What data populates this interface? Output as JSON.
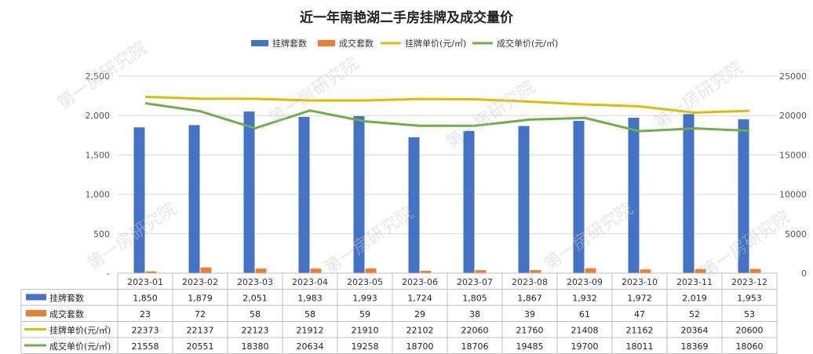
{
  "chart_data": {
    "type": "bar",
    "title": "近一年南艳湖二手房挂牌及成交量价",
    "categories": [
      "2023-01",
      "2023-02",
      "2023-03",
      "2023-04",
      "2023-05",
      "2023-06",
      "2023-07",
      "2023-08",
      "2023-09",
      "2023-10",
      "2023-11",
      "2023-12"
    ],
    "series": [
      {
        "name": "挂牌套数",
        "type": "bar",
        "axis": "left",
        "color": "#4472C4",
        "values": [
          1850,
          1879,
          2051,
          1983,
          1993,
          1724,
          1805,
          1867,
          1932,
          1972,
          2019,
          1953
        ],
        "labels": [
          "1,850",
          "1,879",
          "2,051",
          "1,983",
          "1,993",
          "1,724",
          "1,805",
          "1,867",
          "1,932",
          "1,972",
          "2,019",
          "1,953"
        ]
      },
      {
        "name": "成交套数",
        "type": "bar",
        "axis": "left",
        "color": "#ED7D31",
        "values": [
          23,
          72,
          58,
          58,
          59,
          29,
          38,
          39,
          61,
          47,
          52,
          53
        ],
        "labels": [
          "23",
          "72",
          "58",
          "58",
          "59",
          "29",
          "38",
          "39",
          "61",
          "47",
          "52",
          "53"
        ]
      },
      {
        "name": "挂牌单价(元/㎡)",
        "type": "line",
        "axis": "right",
        "color": "#E6B800",
        "values": [
          22373,
          22137,
          22123,
          21912,
          21910,
          22102,
          22060,
          21760,
          21408,
          21162,
          20364,
          20600
        ],
        "labels": [
          "22373",
          "22137",
          "22123",
          "21912",
          "21910",
          "22102",
          "22060",
          "21760",
          "21408",
          "21162",
          "20364",
          "20600"
        ]
      },
      {
        "name": "成交单价(元/㎡)",
        "type": "line",
        "axis": "right",
        "color": "#70AD47",
        "values": [
          21558,
          20551,
          18380,
          20634,
          19258,
          18700,
          18706,
          19485,
          19700,
          18011,
          18369,
          18060
        ],
        "labels": [
          "21558",
          "20551",
          "18380",
          "20634",
          "19258",
          "18700",
          "18706",
          "19485",
          "19700",
          "18011",
          "18369",
          "18060"
        ]
      }
    ],
    "ylim_left": [
      0,
      2500
    ],
    "yticks_left": [
      "-",
      "500",
      "1,000",
      "1,500",
      "2,000",
      "2,500"
    ],
    "ylim_right": [
      0,
      25000
    ],
    "yticks_right": [
      "0",
      "5000",
      "10000",
      "15000",
      "20000",
      "25000"
    ],
    "grid": true,
    "legend_position": "top",
    "data_table": true
  },
  "watermark": "第一房研究院"
}
